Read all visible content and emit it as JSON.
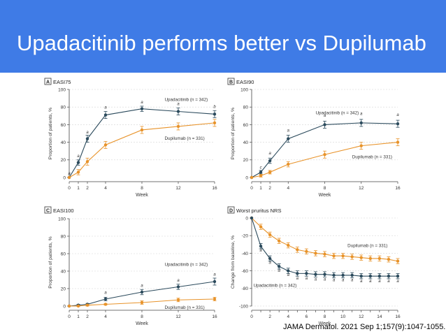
{
  "slide": {
    "title": "Upadacitinib performs better vs Dupilumab",
    "citation": "JAMA Dermatol. 2021 Sep 1;157(9):1047-1055."
  },
  "colors": {
    "banner": "#3f7be6",
    "upadacitinib": "#2b4a5c",
    "dupilumab": "#e8932a"
  },
  "chart_data": [
    {
      "panel": "A",
      "type": "line",
      "title": "EASI75",
      "xlabel": "Week",
      "ylabel": "Proportion of patients, %",
      "xticks": [
        0,
        1,
        2,
        4,
        8,
        12,
        16
      ],
      "yticks": [
        0,
        20,
        40,
        60,
        80,
        100
      ],
      "xlim": [
        0,
        16
      ],
      "ylim": [
        0,
        100
      ],
      "series": [
        {
          "name": "Upadacitinib",
          "n_label": "Upadacitinib (n = 342)",
          "label_anchor": [
            10.5,
            87
          ],
          "x": [
            0,
            1,
            2,
            4,
            8,
            12,
            16
          ],
          "y": [
            0,
            17,
            44,
            71,
            78,
            75,
            72
          ],
          "err": [
            0,
            3,
            4,
            4,
            3,
            4,
            4
          ]
        },
        {
          "name": "Dupilumab",
          "n_label": "Dupilumab (n = 331)",
          "label_anchor": [
            10.5,
            43
          ],
          "x": [
            0,
            1,
            2,
            4,
            8,
            12,
            16
          ],
          "y": [
            0,
            6,
            18,
            37,
            54,
            58,
            62
          ],
          "err": [
            0,
            3,
            4,
            4,
            4,
            4,
            4
          ]
        }
      ],
      "annotations": [
        {
          "x": 0,
          "y": 3,
          "text": "a"
        },
        {
          "x": 1,
          "y": 23,
          "text": "a"
        },
        {
          "x": 2,
          "y": 50,
          "text": "a"
        },
        {
          "x": 4,
          "y": 78,
          "text": "a"
        },
        {
          "x": 8,
          "y": 84,
          "text": "a"
        },
        {
          "x": 12,
          "y": 82,
          "text": "a"
        },
        {
          "x": 16,
          "y": 79,
          "text": "b"
        }
      ]
    },
    {
      "panel": "B",
      "type": "line",
      "title": "EASI90",
      "xlabel": "Week",
      "ylabel": "Proportion of patients, %",
      "xticks": [
        0,
        1,
        2,
        4,
        8,
        12,
        16
      ],
      "yticks": [
        0,
        20,
        40,
        60,
        80,
        100
      ],
      "xlim": [
        0,
        16
      ],
      "ylim": [
        0,
        100
      ],
      "series": [
        {
          "name": "Upadacitinib",
          "n_label": "Upadacitinib (n = 342)",
          "label_anchor": [
            7.0,
            72
          ],
          "x": [
            0,
            1,
            2,
            4,
            8,
            12,
            16
          ],
          "y": [
            0,
            6,
            19,
            44,
            60,
            62,
            61
          ],
          "err": [
            0,
            2,
            3,
            4,
            4,
            4,
            4
          ]
        },
        {
          "name": "Dupilumab",
          "n_label": "Dupilumab (n = 331)",
          "label_anchor": [
            11.0,
            22
          ],
          "x": [
            0,
            1,
            2,
            4,
            8,
            12,
            16
          ],
          "y": [
            0,
            2,
            6,
            15,
            26,
            36,
            40
          ],
          "err": [
            0,
            1.5,
            2,
            3,
            4,
            4,
            4
          ]
        }
      ],
      "annotations": [
        {
          "x": 1,
          "y": 10,
          "text": "c"
        },
        {
          "x": 2,
          "y": 26,
          "text": "a"
        },
        {
          "x": 4,
          "y": 52,
          "text": "a"
        },
        {
          "x": 8,
          "y": 69,
          "text": "a"
        },
        {
          "x": 12,
          "y": 71,
          "text": "a"
        },
        {
          "x": 16,
          "y": 70,
          "text": "a"
        }
      ]
    },
    {
      "panel": "C",
      "type": "line",
      "title": "EASI100",
      "xlabel": "Week",
      "ylabel": "Proportion of patients, %",
      "xticks": [
        0,
        1,
        2,
        4,
        8,
        12,
        16
      ],
      "yticks": [
        0,
        20,
        40,
        60,
        80,
        100
      ],
      "xlim": [
        0,
        16
      ],
      "ylim": [
        0,
        100
      ],
      "series": [
        {
          "name": "Upadacitinib",
          "n_label": "Upadacitinib (n = 342)",
          "label_anchor": [
            10.5,
            46
          ],
          "x": [
            0,
            1,
            2,
            4,
            8,
            12,
            16
          ],
          "y": [
            0,
            1,
            2,
            8,
            16,
            22,
            28
          ],
          "err": [
            0,
            1,
            1,
            2,
            3,
            3,
            4
          ]
        },
        {
          "name": "Dupilumab",
          "n_label": "Dupilumab (n = 331)",
          "label_anchor": [
            10.5,
            -3
          ],
          "x": [
            0,
            1,
            2,
            4,
            8,
            12,
            16
          ],
          "y": [
            0,
            0,
            1,
            2,
            4,
            7,
            8
          ],
          "err": [
            0,
            0.5,
            1,
            1,
            2,
            2,
            2
          ]
        }
      ],
      "annotations": [
        {
          "x": 4,
          "y": 14,
          "text": "a"
        },
        {
          "x": 8,
          "y": 22,
          "text": "a"
        },
        {
          "x": 12,
          "y": 28,
          "text": "a"
        },
        {
          "x": 16,
          "y": 35,
          "text": "a"
        }
      ]
    },
    {
      "panel": "D",
      "type": "line",
      "title": "Worst pruritus NRS",
      "xlabel": "Week",
      "ylabel": "Change from baseline, %",
      "xticks": [
        0,
        1,
        2,
        3,
        4,
        5,
        6,
        7,
        8,
        9,
        10,
        11,
        12,
        13,
        14,
        15,
        16
      ],
      "xtick_labels": [
        0,
        2,
        4,
        6,
        8,
        10,
        12,
        14,
        16
      ],
      "yticks": [
        0,
        -20,
        -40,
        -60,
        -80,
        -100
      ],
      "xlim": [
        0,
        16
      ],
      "ylim": [
        -100,
        0
      ],
      "series": [
        {
          "name": "Dupilumab",
          "n_label": "Dupilumab (n = 331)",
          "label_anchor": [
            10.5,
            -33
          ],
          "x": [
            0,
            1,
            2,
            3,
            4,
            5,
            6,
            7,
            8,
            9,
            10,
            11,
            12,
            13,
            14,
            15,
            16
          ],
          "y": [
            0,
            -10,
            -19,
            -26,
            -31,
            -36,
            -38,
            -40,
            -41,
            -43,
            -43,
            -44,
            -45,
            -46,
            -46,
            -47,
            -49
          ],
          "err": [
            0,
            3,
            3,
            3,
            3,
            3,
            3,
            3,
            3,
            3,
            3,
            3,
            3,
            3,
            3,
            3,
            3
          ]
        },
        {
          "name": "Upadacitinib",
          "n_label": "Upadacitinib (n = 342)",
          "label_anchor": [
            0.2,
            -78
          ],
          "x": [
            0,
            1,
            2,
            3,
            4,
            5,
            6,
            7,
            8,
            9,
            10,
            11,
            12,
            13,
            14,
            15,
            16
          ],
          "y": [
            0,
            -32,
            -46,
            -55,
            -60,
            -63,
            -63,
            -64,
            -64,
            -65,
            -65,
            -65,
            -66,
            -66,
            -66,
            -66,
            -66
          ],
          "err": [
            0,
            3,
            3,
            3,
            3,
            3,
            3,
            3,
            3,
            3,
            3,
            3,
            3,
            3,
            3,
            3,
            3
          ]
        }
      ],
      "annotations": [
        {
          "x": 1,
          "y": -38,
          "text": "a"
        },
        {
          "x": 2,
          "y": -52,
          "text": "a"
        },
        {
          "x": 3,
          "y": -61,
          "text": "a"
        },
        {
          "x": 4,
          "y": -66,
          "text": "a"
        },
        {
          "x": 5,
          "y": -70,
          "text": "a"
        },
        {
          "x": 6,
          "y": -70,
          "text": "a"
        },
        {
          "x": 7,
          "y": -71,
          "text": "a"
        },
        {
          "x": 8,
          "y": -71,
          "text": "a"
        },
        {
          "x": 9,
          "y": -72,
          "text": "a"
        },
        {
          "x": 10,
          "y": -72,
          "text": "a"
        },
        {
          "x": 11,
          "y": -72,
          "text": "a"
        },
        {
          "x": 12,
          "y": -73,
          "text": "a"
        },
        {
          "x": 13,
          "y": -73,
          "text": "a"
        },
        {
          "x": 14,
          "y": -73,
          "text": "a"
        },
        {
          "x": 15,
          "y": -73,
          "text": "a"
        },
        {
          "x": 16,
          "y": -73,
          "text": "a"
        }
      ]
    }
  ]
}
